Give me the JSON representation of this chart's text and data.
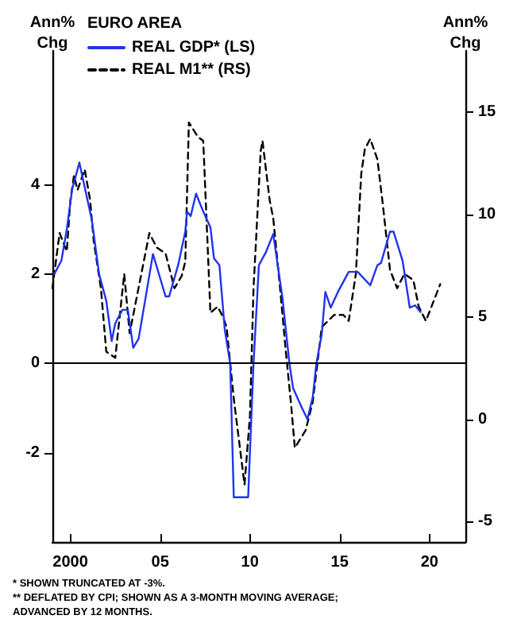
{
  "chart_data": {
    "type": "line",
    "legend_title": "EURO AREA",
    "ylabel": "Ann% Chg",
    "y2label": "Ann% Chg",
    "xlim": [
      1999,
      2022
    ],
    "xticks": [
      {
        "value": 2000,
        "label": "2000"
      },
      {
        "value": 2005,
        "label": "05"
      },
      {
        "value": 2010,
        "label": "10"
      },
      {
        "value": 2015,
        "label": "15"
      },
      {
        "value": 2020,
        "label": "20"
      }
    ],
    "ylim": [
      -4,
      7
    ],
    "yticks": [
      -2,
      0,
      2,
      4
    ],
    "y2lim": [
      -6,
      18
    ],
    "y2ticks": [
      -5,
      0,
      5,
      10,
      15
    ],
    "grid": false,
    "legend": "top left",
    "marker": "none",
    "ref_lines": [
      {
        "axis": "y",
        "value": 0,
        "color": "#000000",
        "line_style": "solid"
      }
    ],
    "annotations": [
      "* SHOWN TRUNCATED AT -3%.",
      "** DEFLATED BY CPI; SHOWN AS A 3-MONTH MOVING AVERAGE; ADVANCED BY 12 MONTHS."
    ],
    "series": [
      {
        "name": "REAL GDP* (LS)",
        "color": "#2233ee",
        "line_style": "solid",
        "x": [
          1999.1,
          1999.5,
          1999.8,
          2000.1,
          2000.5,
          2001.2,
          2001.6,
          2002.0,
          2002.3,
          2002.5,
          2002.9,
          2003.2,
          2003.5,
          2003.8,
          2004.6,
          2005.3,
          2005.5,
          2006.0,
          2006.4,
          2006.5,
          2006.7,
          2007.0,
          2007.4,
          2007.8,
          2008.0,
          2008.3,
          2008.6,
          2008.9,
          2009.1,
          2009.9,
          2010.2,
          2010.5,
          2010.9,
          2011.3,
          2011.6,
          2011.8,
          2012.2,
          2012.4,
          2012.9,
          2013.2,
          2013.5,
          2013.7,
          2014.0,
          2014.2,
          2014.5,
          2014.9,
          2015.5,
          2016.0,
          2016.7,
          2017.1,
          2017.3,
          2017.8,
          2018.0,
          2018.5,
          2018.9,
          2019.2,
          2019.5
        ],
        "values": [
          2.0,
          2.3,
          3.0,
          3.9,
          4.5,
          3.2,
          2.0,
          1.4,
          0.5,
          0.9,
          1.2,
          1.2,
          0.35,
          0.55,
          2.45,
          1.5,
          1.5,
          2.2,
          2.95,
          3.4,
          3.3,
          3.8,
          3.4,
          3.05,
          2.35,
          2.2,
          0.75,
          0,
          -3,
          -3,
          0,
          2.2,
          2.5,
          2.9,
          2.05,
          1.5,
          0,
          -0.55,
          -1.0,
          -1.25,
          -0.75,
          0,
          0.65,
          1.6,
          1.25,
          1.6,
          2.05,
          2.05,
          1.75,
          2.2,
          2.25,
          2.95,
          2.95,
          2.3,
          1.25,
          1.3,
          1.15
        ]
      },
      {
        "name": "REAL M1** (RS)",
        "color": "#000000",
        "line_style": "dashed",
        "axis": "y2",
        "x": [
          1999.0,
          1999.4,
          1999.8,
          2000.0,
          2000.2,
          2000.4,
          2000.8,
          2001.1,
          2001.3,
          2001.7,
          2002.0,
          2002.5,
          2003.0,
          2003.3,
          2004.4,
          2004.8,
          2005.3,
          2005.8,
          2006.2,
          2006.4,
          2006.6,
          2007.1,
          2007.4,
          2007.8,
          2008.2,
          2008.5,
          2008.7,
          2009.1,
          2009.7,
          2010.0,
          2010.2,
          2010.6,
          2010.7,
          2011.1,
          2011.3,
          2011.7,
          2012.0,
          2012.3,
          2012.5,
          2013.1,
          2013.5,
          2014.0,
          2014.7,
          2015.2,
          2015.5,
          2015.9,
          2016.2,
          2016.4,
          2016.7,
          2017.1,
          2017.4,
          2017.8,
          2018.2,
          2018.6,
          2019.1,
          2019.4,
          2019.8,
          2020.6
        ],
        "values": [
          6.4,
          9.1,
          8.2,
          10.7,
          11.9,
          11.2,
          12.2,
          10.7,
          8.7,
          6.4,
          3.3,
          3.0,
          7.1,
          4.2,
          9.1,
          8.4,
          8.1,
          6.4,
          7.0,
          7.7,
          14.5,
          13.8,
          13.6,
          5.2,
          5.5,
          5.0,
          4.5,
          1.0,
          -3.2,
          0.15,
          6.4,
          13.1,
          13.6,
          10.7,
          9.8,
          6.2,
          3.3,
          0.65,
          -1.4,
          -0.55,
          0.85,
          4.5,
          5.1,
          5.1,
          4.8,
          7.1,
          12.0,
          13.2,
          13.7,
          12.7,
          10.5,
          7.3,
          6.4,
          7.1,
          6.8,
          5.5,
          4.8,
          6.6
        ]
      }
    ]
  }
}
